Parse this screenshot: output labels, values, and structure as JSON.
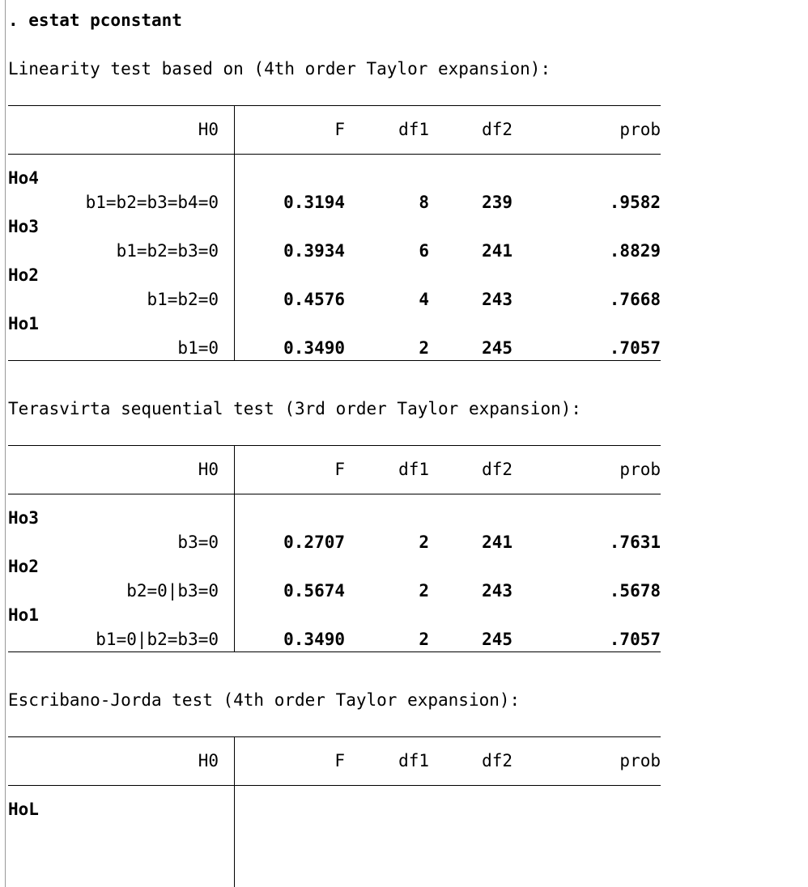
{
  "command": ". estat pconstant",
  "sections": [
    {
      "title": "Linearity test based on (4th order Taylor expansion):",
      "table": {
        "header": [
          "H0",
          "F",
          "df1",
          "df2",
          "prob"
        ],
        "groups": [
          {
            "label": "Ho4",
            "rows": [
              [
                "b1=b2=b3=b4=0",
                "0.3194",
                "8",
                "239",
                ".9582"
              ]
            ]
          },
          {
            "label": "Ho3",
            "rows": [
              [
                "b1=b2=b3=0",
                "0.3934",
                "6",
                "241",
                ".8829"
              ]
            ]
          },
          {
            "label": "Ho2",
            "rows": [
              [
                "b1=b2=0",
                "0.4576",
                "4",
                "243",
                ".7668"
              ]
            ]
          },
          {
            "label": "Ho1",
            "rows": [
              [
                "b1=0",
                "0.3490",
                "2",
                "245",
                ".7057"
              ]
            ]
          }
        ]
      }
    },
    {
      "title": "Terasvirta sequential test (3rd order Taylor expansion):",
      "table": {
        "header": [
          "H0",
          "F",
          "df1",
          "df2",
          "prob"
        ],
        "groups": [
          {
            "label": "Ho3",
            "rows": [
              [
                "b3=0",
                "0.2707",
                "2",
                "241",
                ".7631"
              ]
            ]
          },
          {
            "label": "Ho2",
            "rows": [
              [
                "b2=0|b3=0",
                "0.5674",
                "2",
                "243",
                ".5678"
              ]
            ]
          },
          {
            "label": "Ho1",
            "rows": [
              [
                "b1=0|b2=b3=0",
                "0.3490",
                "2",
                "245",
                ".7057"
              ]
            ]
          }
        ]
      }
    },
    {
      "title": "Escribano-Jorda test (4th order Taylor expansion):",
      "table": {
        "header": [
          "H0",
          "F",
          "df1",
          "df2",
          "prob"
        ],
        "groups": [
          {
            "label": "HoL",
            "rows": []
          }
        ]
      }
    }
  ]
}
